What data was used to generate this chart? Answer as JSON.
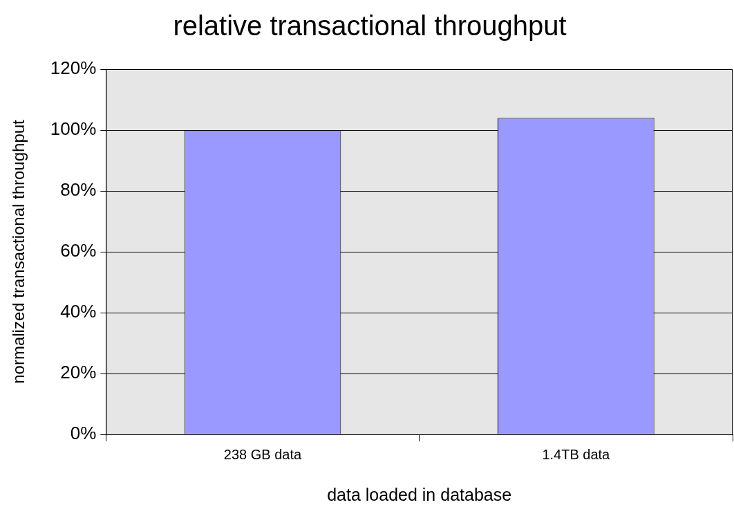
{
  "chart_data": {
    "type": "bar",
    "title": "relative transactional throughput",
    "xlabel": "data loaded in database",
    "ylabel": "normalized transactional throughput",
    "categories": [
      "238 GB data",
      "1.4TB data"
    ],
    "values": [
      100,
      104
    ],
    "color": "#9999ff",
    "ylim": [
      0,
      120
    ],
    "yticks": [
      {
        "value": 0,
        "label": "0%"
      },
      {
        "value": 20,
        "label": "20%"
      },
      {
        "value": 40,
        "label": "40%"
      },
      {
        "value": 60,
        "label": "60%"
      },
      {
        "value": 80,
        "label": "80%"
      },
      {
        "value": 100,
        "label": "100%"
      },
      {
        "value": 120,
        "label": "120%"
      }
    ],
    "grid": "y",
    "legend": false
  }
}
